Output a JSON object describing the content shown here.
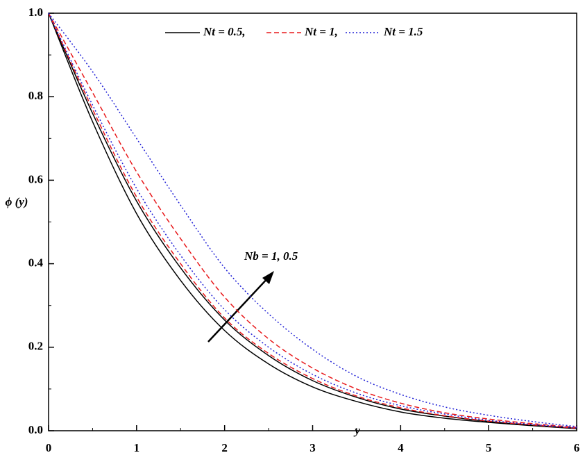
{
  "chart_data": {
    "type": "line",
    "x_label": "y",
    "y_label": "ϕ (y)",
    "annotation": "Nb = 1, 0.5",
    "x": [
      0,
      0.5,
      1,
      1.5,
      2,
      2.5,
      3,
      3.5,
      4,
      4.5,
      5,
      5.5,
      6
    ],
    "series": [
      {
        "name": "Nt = 0.5,",
        "color": "#000000",
        "dash": "none",
        "lines": [
          {
            "values": [
              1,
              0.74,
              0.52,
              0.36,
              0.24,
              0.16,
              0.105,
              0.07,
              0.045,
              0.03,
              0.02,
              0.012,
              0.005
            ]
          },
          {
            "values": [
              1,
              0.76,
              0.55,
              0.39,
              0.265,
              0.18,
              0.12,
              0.08,
              0.052,
              0.035,
              0.022,
              0.013,
              0.006
            ]
          }
        ]
      },
      {
        "name": "Nt = 1,",
        "color": "#e8191b",
        "dash": "7,4",
        "lines": [
          {
            "values": [
              1,
              0.77,
              0.56,
              0.4,
              0.27,
              0.185,
              0.125,
              0.083,
              0.055,
              0.036,
              0.023,
              0.014,
              0.006
            ]
          },
          {
            "values": [
              1,
              0.81,
              0.62,
              0.46,
              0.32,
              0.22,
              0.15,
              0.1,
              0.066,
              0.043,
              0.028,
              0.017,
              0.008
            ]
          }
        ]
      },
      {
        "name": "Nt = 1.5",
        "color": "#1f1fd6",
        "dash": "2,3",
        "lines": [
          {
            "values": [
              1,
              0.78,
              0.58,
              0.42,
              0.29,
              0.2,
              0.135,
              0.09,
              0.06,
              0.04,
              0.025,
              0.015,
              0.007
            ]
          },
          {
            "values": [
              1,
              0.86,
              0.7,
              0.54,
              0.39,
              0.28,
              0.195,
              0.13,
              0.087,
              0.057,
              0.037,
              0.022,
              0.01
            ]
          }
        ]
      }
    ],
    "xlim": [
      0,
      6
    ],
    "xticks": [
      0,
      1,
      2,
      3,
      4,
      5,
      6
    ],
    "ylim": [
      0,
      1
    ],
    "yticks": [
      {
        "value": 0,
        "label": "0.0"
      },
      0.2,
      0.4,
      0.6,
      0.8,
      {
        "value": 1,
        "label": "1.0"
      }
    ]
  }
}
